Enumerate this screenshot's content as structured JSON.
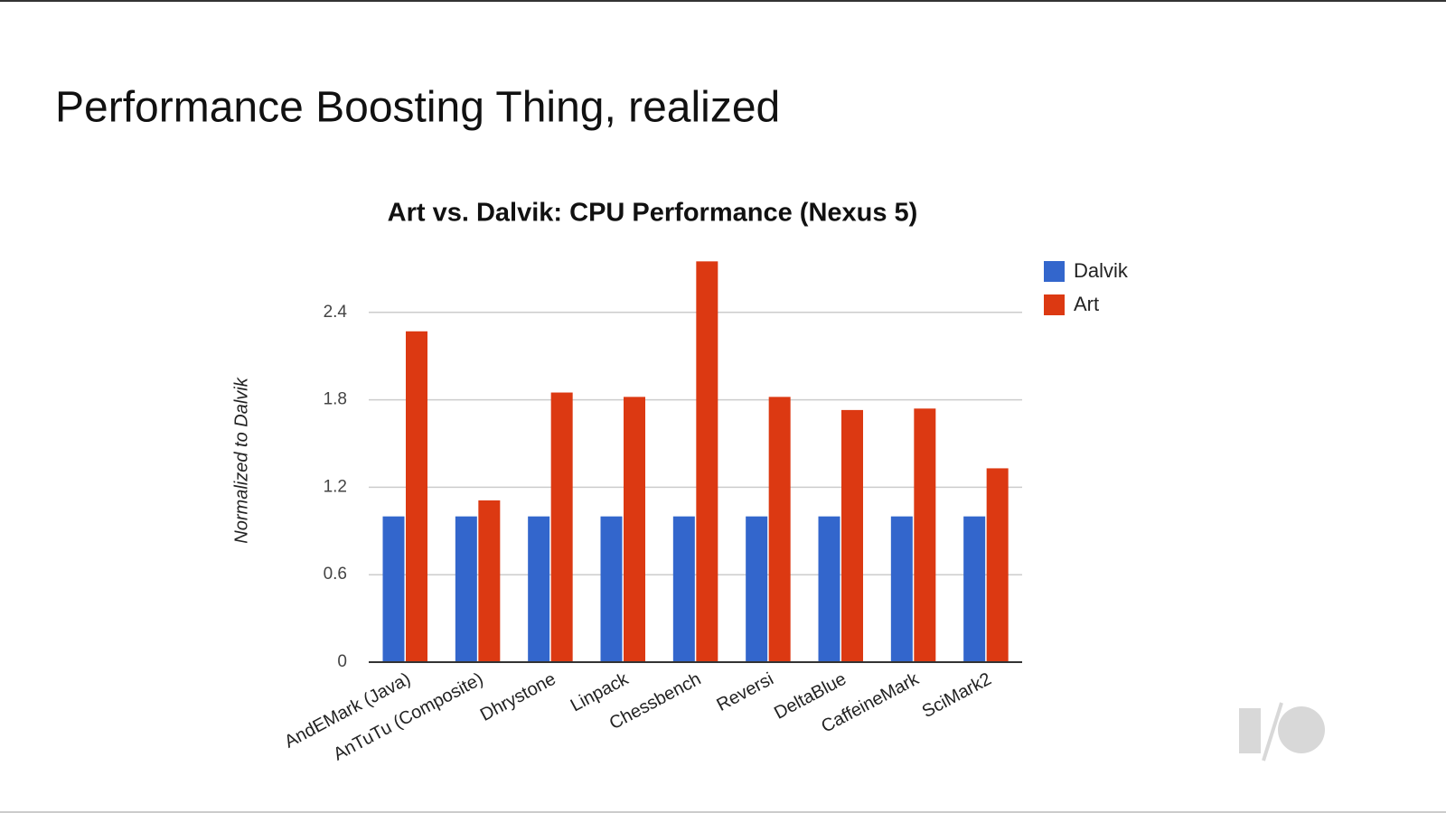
{
  "slide_title": "Performance Boosting Thing, realized",
  "chart_data": {
    "type": "bar",
    "title": "Art vs. Dalvik: CPU Performance (Nexus 5)",
    "y_label": "Normalized to Dalvik",
    "categories": [
      "AndEMark (Java)",
      "AnTuTu (Composite)",
      "Dhrystone",
      "Linpack",
      "Chessbench",
      "Reversi",
      "DeltaBlue",
      "CaffeineMark",
      "SciMark2"
    ],
    "series": [
      {
        "name": "Dalvik",
        "color": "#3366cc",
        "values": [
          1,
          1,
          1,
          1,
          1,
          1,
          1,
          1,
          1
        ]
      },
      {
        "name": "Art",
        "color": "#dc3912",
        "values": [
          2.27,
          1.11,
          1.85,
          1.82,
          2.75,
          1.82,
          1.73,
          1.74,
          1.33
        ]
      }
    ],
    "ylim": [
      0,
      3
    ],
    "yticks": [
      0,
      0.6,
      1.2,
      1.8,
      2.4
    ],
    "grid": true,
    "legend": "right"
  }
}
